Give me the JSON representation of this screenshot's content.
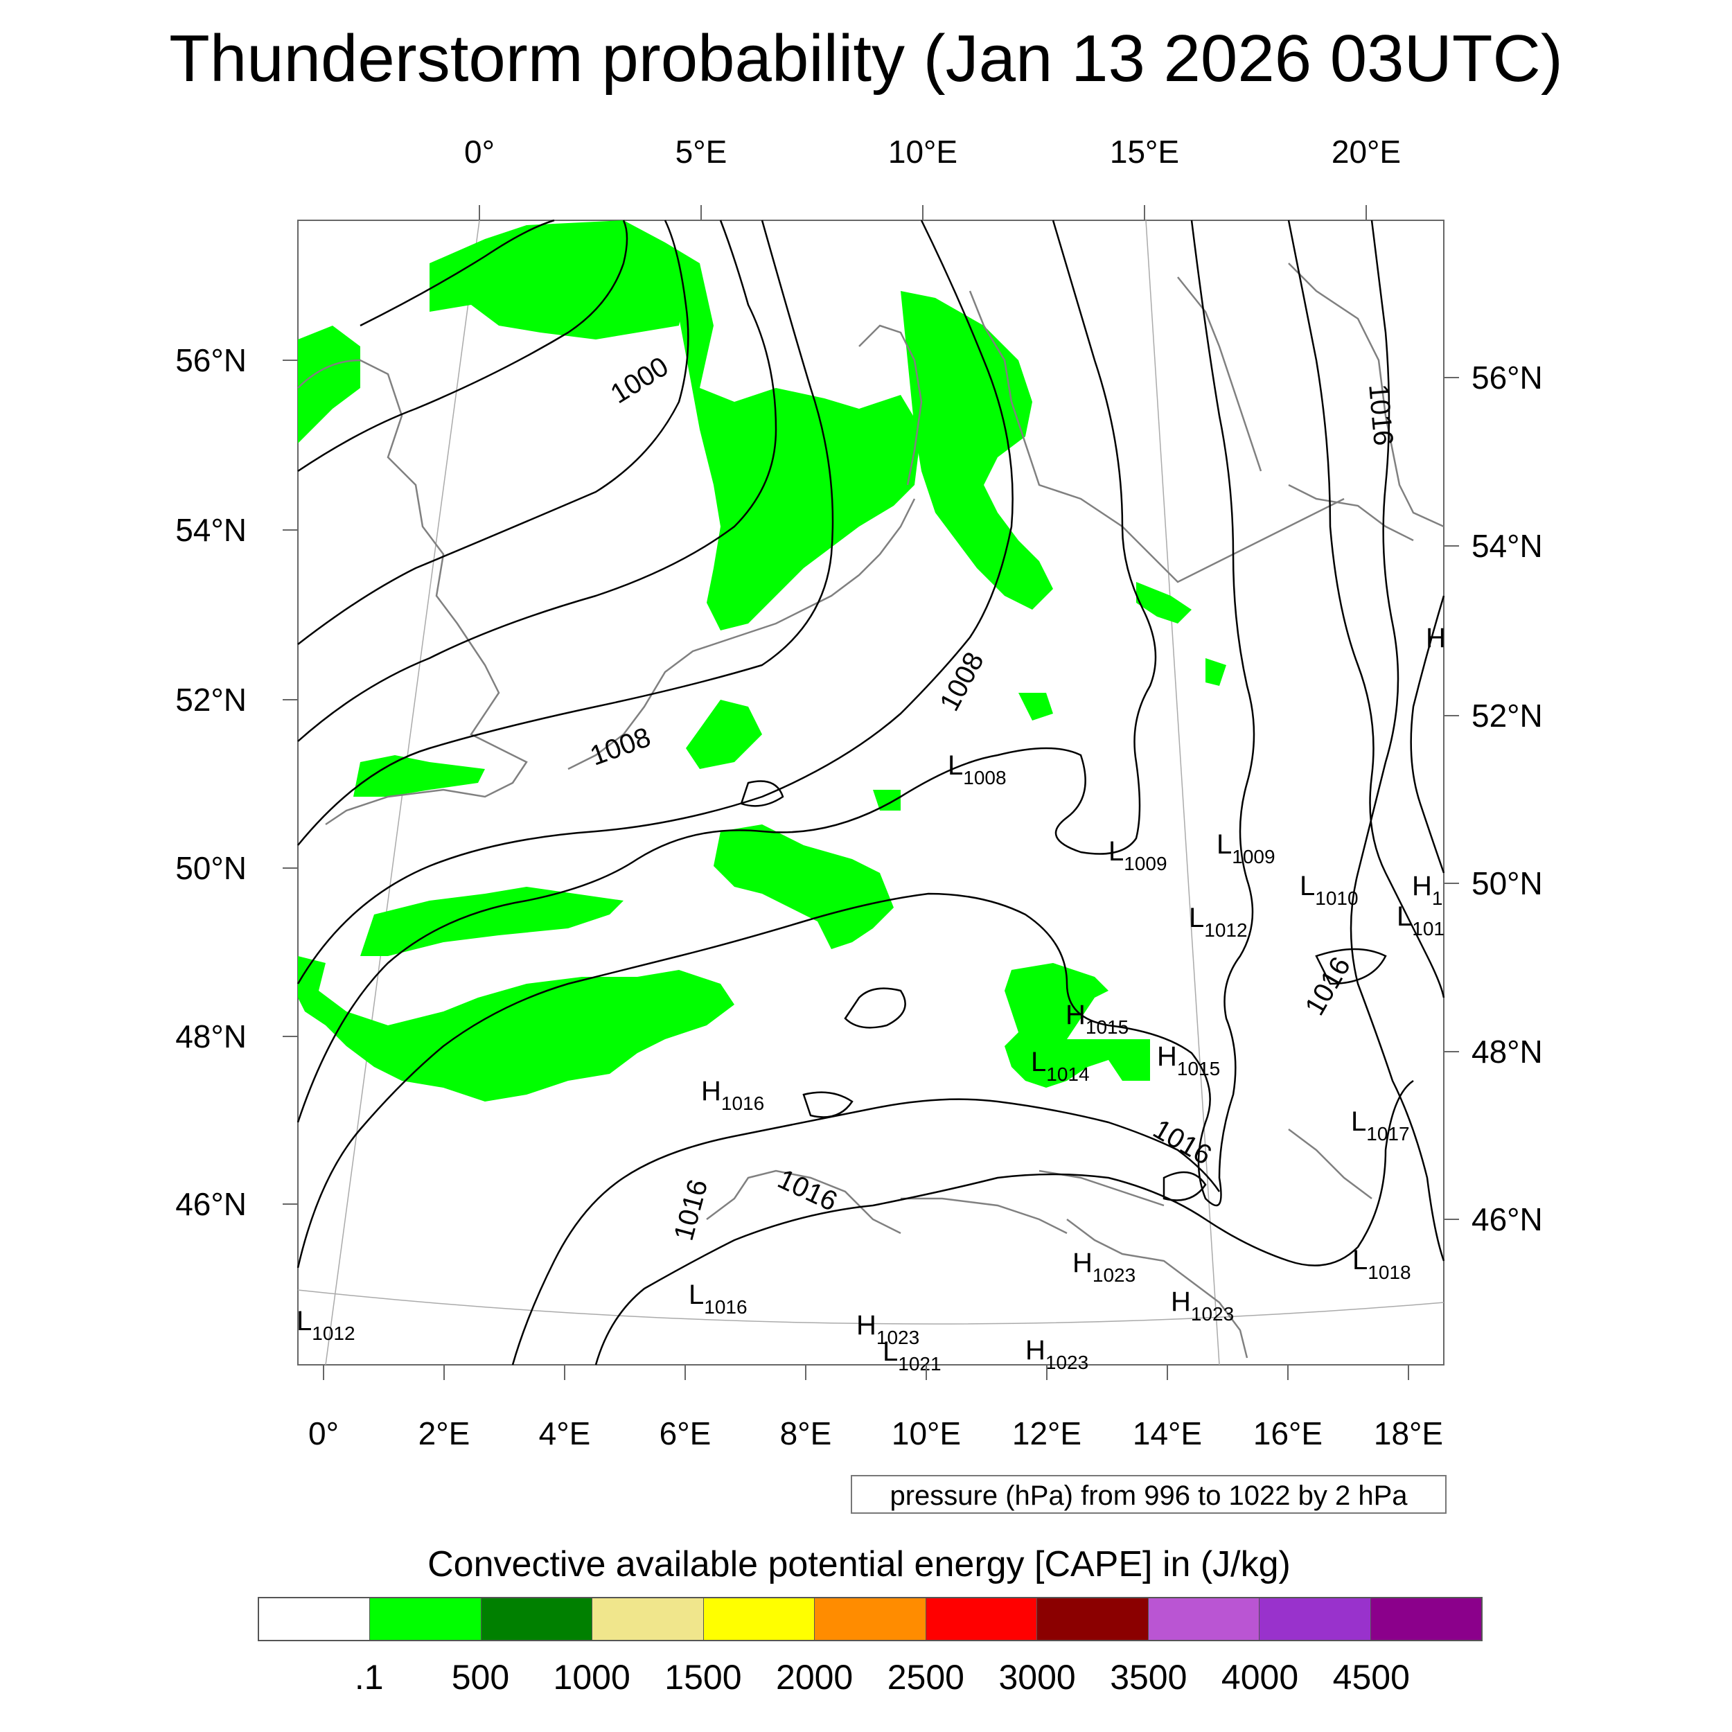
{
  "title": "Thunderstorm probability (Jan 13 2026 03UTC)",
  "map": {
    "top_lon_labels": [
      "0°",
      "5°E",
      "10°E",
      "15°E",
      "20°E"
    ],
    "bottom_lon_labels": [
      "0°",
      "2°E",
      "4°E",
      "6°E",
      "8°E",
      "10°E",
      "12°E",
      "14°E",
      "16°E",
      "18°E"
    ],
    "left_lat_labels": [
      "56°N",
      "54°N",
      "52°N",
      "50°N",
      "48°N",
      "46°N"
    ],
    "right_lat_labels": [
      "56°N",
      "54°N",
      "52°N",
      "50°N",
      "48°N",
      "46°N"
    ],
    "contour_labels": [
      "1000",
      "1008",
      "1008",
      "1016",
      "1016",
      "1016",
      "1016",
      "1016"
    ],
    "pressure_centers": [
      {
        "type": "L",
        "value": "1008"
      },
      {
        "type": "L",
        "value": "1009"
      },
      {
        "type": "L",
        "value": "1009"
      },
      {
        "type": "L",
        "value": "1010"
      },
      {
        "type": "L",
        "value": "1012"
      },
      {
        "type": "H",
        "value": "1"
      },
      {
        "type": "L",
        "value": "101"
      },
      {
        "type": "H",
        "value": "1015"
      },
      {
        "type": "H",
        "value": "1015"
      },
      {
        "type": "L",
        "value": "1014"
      },
      {
        "type": "H",
        "value": "1016"
      },
      {
        "type": "L",
        "value": "1017"
      },
      {
        "type": "H",
        "value": "1023"
      },
      {
        "type": "H",
        "value": "1023"
      },
      {
        "type": "L",
        "value": "1018"
      },
      {
        "type": "L",
        "value": "1016"
      },
      {
        "type": "H",
        "value": "1023"
      },
      {
        "type": "L",
        "value": "1012"
      },
      {
        "type": "H",
        "value": "1023"
      },
      {
        "type": "L",
        "value": "1021"
      },
      {
        "type": "H",
        "value": ""
      }
    ]
  },
  "pressure_note": "pressure (hPa) from 996 to 1022 by 2 hPa",
  "colorbar": {
    "title": "Convective available potential energy [CAPE] in (J/kg)",
    "colors": [
      "#ffffff",
      "#00ff00",
      "#008000",
      "#f0e68c",
      "#ffff00",
      "#ff8c00",
      "#ff0000",
      "#8b0000",
      "#ba55d3",
      "#9932cc",
      "#8b008b"
    ],
    "labels": [
      ".1",
      "500",
      "1000",
      "1500",
      "2000",
      "2500",
      "3000",
      "3500",
      "4000",
      "4500"
    ]
  }
}
